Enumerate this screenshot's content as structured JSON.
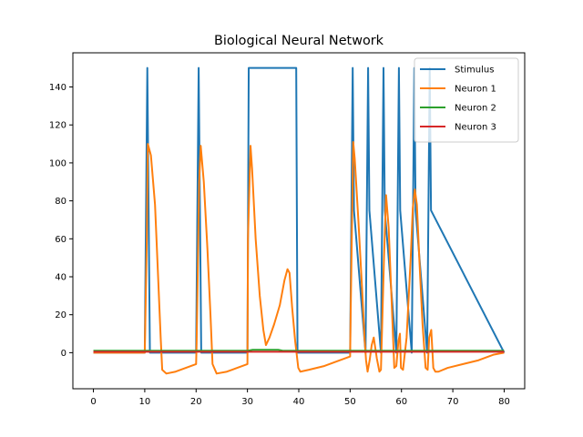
{
  "chart_data": {
    "type": "line",
    "title": "Biological Neural Network",
    "xlabel": "",
    "ylabel": "",
    "xlim": [
      -4,
      84
    ],
    "ylim": [
      -19,
      158
    ],
    "xticks": [
      0,
      10,
      20,
      30,
      40,
      50,
      60,
      70,
      80
    ],
    "yticks": [
      0,
      20,
      40,
      60,
      80,
      100,
      120,
      140
    ],
    "grid": false,
    "legend_position": "top-right",
    "series": [
      {
        "name": "Stimulus",
        "color": "#1f77b4",
        "x": [
          0,
          10.0,
          10.25,
          10.5,
          10.75,
          11.0,
          20.0,
          20.25,
          20.5,
          20.75,
          21.0,
          30.0,
          30.25,
          39.5,
          39.75,
          50.0,
          50.25,
          50.5,
          50.75,
          53.0,
          53.25,
          53.5,
          53.75,
          56.0,
          56.25,
          56.5,
          56.75,
          59.0,
          59.25,
          59.5,
          59.75,
          62.0,
          62.25,
          62.5,
          62.75,
          65.0,
          65.25,
          65.5,
          65.75,
          80
        ],
        "y": [
          0,
          0,
          75,
          150,
          75,
          0,
          0,
          75,
          150,
          75,
          0,
          0,
          150,
          150,
          0,
          0,
          75,
          150,
          75,
          0,
          75,
          150,
          75,
          0,
          75,
          150,
          75,
          0,
          75,
          150,
          75,
          0,
          75,
          150,
          75,
          0,
          75,
          150,
          75,
          0
        ]
      },
      {
        "name": "Neuron 1",
        "color": "#ff7f0e",
        "x": [
          0,
          10.0,
          10.4,
          10.6,
          11.2,
          12.0,
          12.6,
          13.1,
          13.4,
          14.2,
          16.0,
          18.0,
          20.0,
          20.1,
          20.6,
          20.9,
          21.5,
          22.2,
          22.8,
          23.2,
          24.0,
          26.0,
          28.0,
          30.0,
          30.1,
          30.6,
          30.9,
          31.6,
          32.4,
          33.1,
          33.6,
          34.3,
          35.2,
          36.3,
          37.2,
          37.8,
          38.2,
          38.7,
          39.3,
          39.9,
          40.3,
          42.0,
          45.0,
          48.0,
          50.0,
          50.1,
          50.6,
          50.9,
          51.6,
          52.3,
          52.8,
          53.1,
          53.4,
          53.8,
          54.2,
          54.6,
          55.2,
          55.7,
          56.0,
          56.6,
          57.0,
          57.5,
          58.1,
          58.6,
          59.0,
          59.4,
          59.7,
          59.9,
          60.3,
          61.0,
          61.8,
          62.2,
          62.6,
          63.0,
          63.5,
          64.1,
          64.7,
          65.1,
          65.4,
          65.8,
          66.2,
          66.6,
          67.2,
          69.0,
          72.0,
          75.0,
          78.0,
          80.0
        ],
        "y": [
          0,
          0,
          60,
          110,
          104,
          78,
          40,
          8,
          -9,
          -11,
          -10,
          -8,
          -6,
          5,
          90,
          109,
          90,
          55,
          20,
          -6,
          -11,
          -10,
          -8,
          -6,
          60,
          109,
          97,
          60,
          30,
          12,
          4,
          8,
          15,
          25,
          38,
          44,
          42,
          24,
          6,
          -8,
          -10,
          -9,
          -7,
          -4,
          -2,
          20,
          111,
          102,
          70,
          35,
          8,
          -4,
          -10,
          -4,
          4,
          8,
          -3,
          -10,
          -9,
          50,
          83,
          66,
          26,
          -8,
          -7,
          6,
          10,
          -8,
          -9,
          8,
          50,
          76,
          86,
          78,
          48,
          15,
          -8,
          -9,
          8,
          12,
          -8,
          -10,
          -10,
          -8,
          -6,
          -4,
          -1,
          0
        ]
      },
      {
        "name": "Neuron 2",
        "color": "#2ca02c",
        "x": [
          0,
          30,
          31,
          36,
          37,
          80
        ],
        "y": [
          1,
          1,
          1.5,
          1.5,
          1,
          1
        ]
      },
      {
        "name": "Neuron 3",
        "color": "#d62728",
        "x": [
          0,
          80
        ],
        "y": [
          0.5,
          0.5
        ]
      }
    ]
  }
}
